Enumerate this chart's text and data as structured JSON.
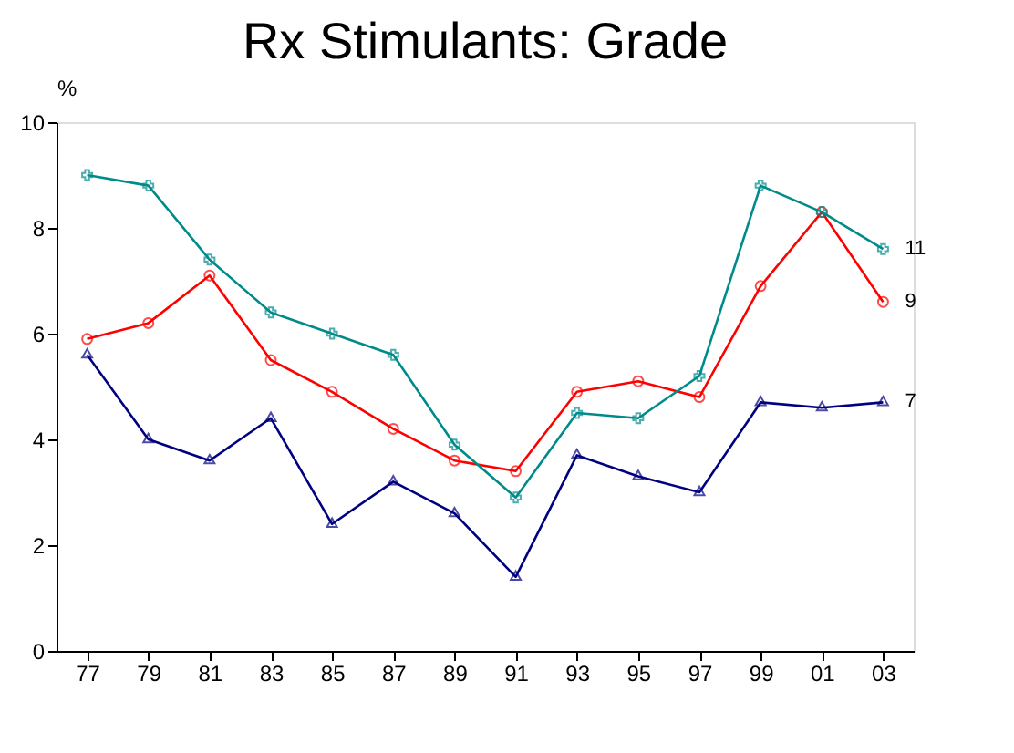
{
  "chart_data": {
    "type": "line",
    "title": "Rx Stimulants:  Grade",
    "ylabel": "%",
    "categories": [
      "77",
      "79",
      "81",
      "83",
      "85",
      "87",
      "89",
      "91",
      "93",
      "95",
      "97",
      "99",
      "01",
      "03"
    ],
    "series": [
      {
        "name": "7",
        "color": "#000080",
        "marker": "triangle",
        "values": [
          5.6,
          4.0,
          3.6,
          4.4,
          2.4,
          3.2,
          2.6,
          1.4,
          3.7,
          3.3,
          3.0,
          4.7,
          4.6,
          4.7
        ]
      },
      {
        "name": "9",
        "color": "#ff0000",
        "marker": "circle",
        "values": [
          5.9,
          6.2,
          7.1,
          5.5,
          4.9,
          4.2,
          3.6,
          3.4,
          4.9,
          5.1,
          4.8,
          6.9,
          8.3,
          6.6
        ]
      },
      {
        "name": "11",
        "color": "#008b8b",
        "marker": "cross",
        "values": [
          9.0,
          8.8,
          7.4,
          6.4,
          6.0,
          5.6,
          3.9,
          2.9,
          4.5,
          4.4,
          5.2,
          8.8,
          8.3,
          7.6
        ]
      }
    ],
    "ylim": [
      0,
      10
    ],
    "yticks": [
      0,
      2,
      4,
      6,
      8,
      10
    ],
    "grid": false,
    "legend": false
  }
}
